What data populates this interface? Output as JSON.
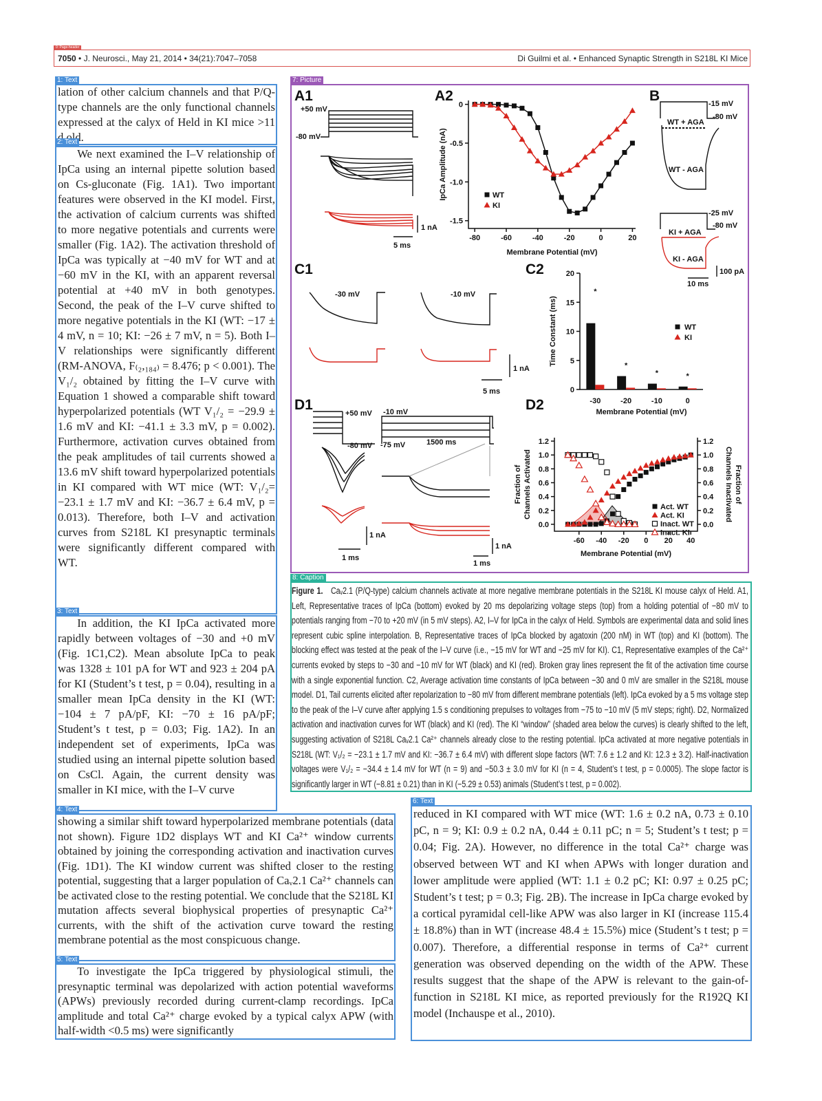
{
  "tags": [
    "0: Page-header",
    "1: Text",
    "2: Text",
    "3: Text",
    "4: Text",
    "5: Text",
    "6: Text",
    "7: Picture",
    "8: Caption"
  ],
  "header": {
    "page": "7050",
    "journal": "• J. Neurosci., May 21, 2014 • 34(21):7047–7058",
    "authors": "Di Guilmi et al. • Enhanced Synaptic Strength in S218L KI Mice"
  },
  "blocks": [
    "lation of other calcium channels and that P/Q-type channels are the only functional channels expressed at the calyx of Held in KI mice >11 d old.",
    "We next examined the I–V relationship of IpCa using an internal pipette solution based on Cs-gluconate (Fig. 1A1). Two important features were observed in the KI model. First, the activation of calcium currents was shifted to more negative potentials and currents were smaller (Fig. 1A2). The activation threshold of IpCa was typically at −40 mV for WT and at −60 mV in the KI, with an apparent reversal potential at +40 mV in both genotypes. Second, the peak of the I–V curve shifted to more negative potentials in the KI (WT: −17 ± 4 mV, n = 10; KI: −26 ± 7 mV, n = 5). Both I–V relationships were significantly different (RM-ANOVA, F₍₂,₁₈₄₎ = 8.476; p < 0.001). The V₁/₂ obtained by fitting the I–V curve with Equation 1 showed a comparable shift toward hyperpolarized potentials (WT V₁/₂ = −29.9 ± 1.6 mV and KI: −41.1 ± 3.3 mV, p = 0.002). Furthermore, activation curves obtained from the peak amplitudes of tail currents showed a 13.6 mV shift toward hyperpolarized potentials in KI compared with WT mice (WT: V₁/₂= −23.1 ± 1.7 mV and KI: −36.7 ± 6.4 mV, p = 0.013). Therefore, both I–V and activation curves from S218L KI presynaptic terminals were significantly different compared with WT.",
    "In addition, the KI IpCa activated more rapidly between voltages of −30 and +0 mV (Fig. 1C1,C2). Mean absolute IpCa to peak was 1328 ± 101 pA for WT and 923 ± 204 pA for KI (Student’s t test, p = 0.04), resulting in a smaller mean IpCa density in the KI (WT: −104 ± 7 pA/pF, KI: −70 ± 16 pA/pF; Student’s t test, p = 0.03; Fig. 1A2). In an independent set of experiments, IpCa was studied using an internal pipette solution based on CsCl. Again, the current density was smaller in KI mice, with the I–V curve",
    "showing a similar shift toward hyperpolarized membrane potentials (data not shown). Figure 1D2 displays WT and KI Ca²⁺ window currents obtained by joining the corresponding activation and inactivation curves (Fig. 1D1). The KI window current was shifted closer to the resting potential, suggesting that a larger population of Caᵥ2.1 Ca²⁺ channels can be activated close to the resting potential. We conclude that the S218L KI mutation affects several biophysical properties of presynaptic Ca²⁺ currents, with the shift of the activation curve toward the resting membrane potential as the most conspicuous change.",
    "To investigate the IpCa triggered by physiological stimuli, the presynaptic terminal was depolarized with action potential waveforms (APWs) previously recorded during current-clamp recordings. IpCa amplitude and total Ca²⁺ charge evoked by a typical calyx APW (with half-width <0.5 ms) were significantly",
    "reduced in KI compared with WT mice (WT: 1.6 ± 0.2 nA, 0.73 ± 0.10 pC, n = 9; KI: 0.9 ± 0.2 nA, 0.44 ± 0.11 pC; n = 5; Student’s t test; p = 0.04; Fig. 2A). However, no difference in the total Ca²⁺ charge was observed between WT and KI when APWs with longer duration and lower amplitude were applied (WT: 1.1 ± 0.2 pC; KI: 0.97 ± 0.25 pC; Student’s t test; p = 0.3; Fig. 2B). The increase in IpCa charge evoked by a cortical pyramidal cell-like APW was also larger in KI (increase 115.4 ± 18.8%) than in WT (increase 48.4 ± 15.5%) mice (Student’s t test; p = 0.007). Therefore, a differential response in terms of Ca²⁺ current generation was observed depending on the width of the APW. These results suggest that the shape of the APW is relevant to the gain-of-function in S218L KI mice, as reported previously for the R192Q KI model (Inchauspe et al., 2010)."
  ],
  "figure": {
    "panels": {
      "a1": "A1",
      "a2": "A2",
      "b": "B",
      "c1": "C1",
      "c2": "C2",
      "d1": "D1",
      "d2": "D2"
    },
    "a1": {
      "top": "+50 mV",
      "hold": "-80 mV",
      "scale_y": "1 nA",
      "scale_x": "5 ms"
    },
    "a2": {
      "type": "line",
      "xlabel": "Membrane Potential (mV)",
      "ylabel": "IpCa Amplitude (nA)",
      "xlim": [
        -84,
        22
      ],
      "ylim": [
        -1.6,
        0.05
      ],
      "xticks": [
        -80,
        -60,
        -40,
        -20,
        0,
        20
      ],
      "yticks": [
        0,
        -0.5,
        {
          "value": -1,
          "label": "-1.0"
        },
        -1.5
      ],
      "x": [
        -80,
        -75,
        -70,
        -65,
        -60,
        -55,
        -50,
        -45,
        -40,
        -35,
        -30,
        -25,
        -20,
        -15,
        -10,
        -5,
        0,
        5,
        10,
        15,
        20
      ],
      "series": [
        {
          "name": "WT",
          "color": "#111111",
          "marker": "square",
          "values": [
            0,
            0,
            0,
            0,
            -0.01,
            -0.02,
            -0.05,
            -0.12,
            -0.3,
            -0.62,
            -0.95,
            -1.2,
            -1.38,
            -1.4,
            -1.35,
            -1.2,
            -1.05,
            -0.9,
            -0.75,
            -0.62,
            -0.5
          ]
        },
        {
          "name": "KI",
          "color": "#d7261e",
          "marker": "triangle",
          "values": [
            0,
            0,
            -0.01,
            -0.05,
            -0.15,
            -0.3,
            -0.45,
            -0.6,
            -0.73,
            -0.82,
            -0.9,
            -0.9,
            -0.85,
            -0.78,
            -0.68,
            -0.6,
            -0.5,
            -0.42,
            -0.32,
            -0.22,
            -0.08
          ]
        }
      ]
    },
    "b": {
      "wt_step": "-15 mV",
      "wt_hold": "-80 mV",
      "wt_plus": "WT + AGA",
      "wt_minus": "WT - AGA",
      "ki_step": "-25 mV",
      "ki_hold": "-80 mV",
      "ki_plus": "KI + AGA",
      "ki_minus": "KI - AGA",
      "scale_y": "100 pA",
      "scale_x": "10 ms"
    },
    "c1": {
      "left": "-30 mV",
      "right": "-10 mV",
      "scale_y": "1 nA",
      "scale_x": "5 ms"
    },
    "c2": {
      "type": "bar",
      "xlabel": "Membrane Potential (mV)",
      "ylabel": "Time Constant (ms)",
      "categories": [
        "-30",
        "-20",
        "-10",
        "0"
      ],
      "ylim": [
        0,
        20
      ],
      "yticks": [
        0,
        5,
        10,
        15,
        20
      ],
      "asterisks": [
        "*",
        "*",
        "*",
        "*"
      ],
      "series": [
        {
          "name": "WT",
          "color": "#111111",
          "values": [
            11.4,
            2.3,
            1.0,
            0.5
          ]
        },
        {
          "name": "KI",
          "color": "#d7261e",
          "values": [
            0.8,
            0.3,
            0.2,
            0.2
          ]
        }
      ]
    },
    "d1": {
      "top": "+50 mV",
      "step": "-10 mV",
      "hold": "-80 mV",
      "pre": "-75 mV",
      "dur": "1500 ms",
      "scale_y1": "1 nA",
      "scale_x1": "1 ms",
      "scale_y2": "1 nA",
      "scale_x2": "1 ms"
    },
    "d2": {
      "type": "scatter",
      "xlabel": "Membrane Potential (mV)",
      "ylabel": [
        "Fraction of",
        "Channels Activated"
      ],
      "y2label": [
        "Fraction of",
        "Channels Inactivated"
      ],
      "xlim": [
        -82,
        46
      ],
      "ylim": [
        -0.1,
        1.25
      ],
      "xticks": [
        -60,
        -40,
        -20,
        0,
        20,
        40
      ],
      "yticks": [
        {
          "value": 0,
          "label": "0.0"
        },
        {
          "value": 0.2,
          "label": "0.2"
        },
        {
          "value": 0.4,
          "label": "0.4"
        },
        {
          "value": 0.6,
          "label": "0.6"
        },
        {
          "value": 0.8,
          "label": "0.8"
        },
        {
          "value": 1,
          "label": "1.0"
        },
        {
          "value": 1.2,
          "label": "1.2"
        }
      ],
      "y2ticks": [
        {
          "value": 0,
          "label": "0.0"
        },
        {
          "value": 0.2,
          "label": "0.2"
        },
        {
          "value": 0.4,
          "label": "0.4"
        },
        {
          "value": 0.6,
          "label": "0.6"
        },
        {
          "value": 0.8,
          "label": "0.8"
        },
        {
          "value": 1,
          "label": "1.0"
        },
        {
          "value": 1.2,
          "label": "1.2"
        }
      ],
      "x": [
        -70,
        -65,
        -60,
        -55,
        -50,
        -45,
        -40,
        -35,
        -30,
        -25,
        -20,
        -15,
        -10,
        -5,
        0,
        5,
        10,
        15,
        20,
        25,
        30,
        35,
        40
      ],
      "series": [
        {
          "name": "Act. WT",
          "color": "#111111",
          "marker": "square",
          "open": false,
          "values": [
            0,
            0,
            0,
            0,
            0,
            0,
            0.01,
            0.05,
            0.15,
            0.4,
            0.5,
            0.58,
            0.65,
            0.7,
            0.75,
            0.8,
            0.83,
            0.87,
            0.9,
            0.93,
            0.95,
            0.97,
            1.0
          ]
        },
        {
          "name": "Act. KI",
          "color": "#d7261e",
          "marker": "triangle",
          "open": false,
          "values": [
            0,
            0,
            0.01,
            0.03,
            0.1,
            0.2,
            0.35,
            0.45,
            0.55,
            0.62,
            0.68,
            0.73,
            0.77,
            0.81,
            0.85,
            0.88,
            0.9,
            0.93,
            0.95,
            0.97,
            0.98,
            0.99,
            1.0
          ]
        },
        {
          "name": "Inact. WT",
          "color": "#111111",
          "marker": "square",
          "open": true,
          "values": [
            1.0,
            1.0,
            1.0,
            1.0,
            1.0,
            0.98,
            0.9,
            0.75,
            0.4,
            0.15,
            0.05,
            0.02,
            0,
            null,
            null,
            null,
            null,
            null,
            null,
            null,
            null,
            null,
            null
          ]
        },
        {
          "name": "Inact. KI",
          "color": "#d7261e",
          "marker": "triangle",
          "open": true,
          "values": [
            1.0,
            0.95,
            0.85,
            0.65,
            0.5,
            0.3,
            0.1,
            0.03,
            0.01,
            0,
            0,
            0,
            0,
            null,
            null,
            null,
            null,
            null,
            null,
            null,
            null,
            null,
            null
          ]
        }
      ]
    }
  },
  "caption": {
    "label": "Figure 1.",
    "text": "Caᵥ2.1 (P/Q-type) calcium channels activate at more negative membrane potentials in the S218L KI mouse calyx of Held. A1, Left, Representative traces of IpCa (bottom) evoked by 20 ms depolarizing voltage steps (top) from a holding potential of −80 mV to potentials ranging from −70 to +20 mV (in 5 mV steps). A2, I–V for IpCa in the calyx of Held. Symbols are experimental data and solid lines represent cubic spline interpolation. B, Representative traces of IpCa blocked by agatoxin (200 nM) in WT (top) and KI (bottom). The blocking effect was tested at the peak of the I–V curve (i.e., −15 mV for WT and −25 mV for KI). C1, Representative examples of the Ca²⁺ currents evoked by steps to −30 and −10 mV for WT (black) and KI (red). Broken gray lines represent the fit of the activation time course with a single exponential function. C2, Average activation time constants of IpCa between −30 and 0 mV are smaller in the S218L mouse model. D1, Tail currents elicited after repolarization to −80 mV from different membrane potentials (left). IpCa evoked by a 5 ms voltage step to the peak of the I–V curve after applying 1.5 s conditioning prepulses to voltages from −75 to −10 mV (5 mV steps; right). D2, Normalized activation and inactivation curves for WT (black) and KI (red). The KI “window” (shaded area below the curves) is clearly shifted to the left, suggesting activation of S218L Caᵥ2.1 Ca²⁺ channels already close to the resting potential. IpCa activated at more negative potentials in S218L (WT: V₁/₂ = −23.1 ± 1.7 mV and KI: −36.7 ± 6.4 mV) with different slope factors (WT: 7.6 ± 1.2 and KI: 12.3 ± 3.2). Half-inactivation voltages were V₁/₂ = −34.4 ± 1.4 mV for WT (n = 9) and −50.3 ± 3.0 mV for KI (n = 4, Student’s t test, p = 0.0005). The slope factor is significantly larger in WT (−8.81 ± 0.21) than in KI (−5.29 ± 0.53) animals (Student’s t test, p = 0.002)."
  }
}
